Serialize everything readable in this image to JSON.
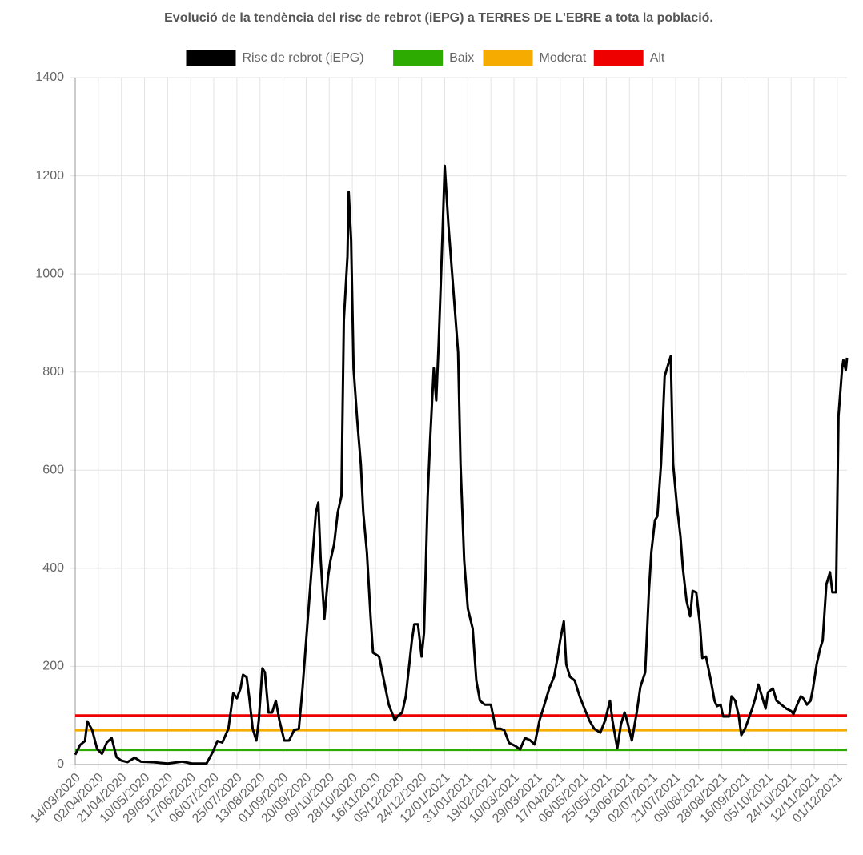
{
  "chart_data": {
    "type": "line",
    "title": "Evolució de la tendència del risc de rebrot (iEPG) a TERRES DE L'EBRE a tota la població.",
    "legend": "top",
    "grid": true,
    "xlim": [
      "14/03/2020",
      "09/12/2021"
    ],
    "xticks": [
      "14/03/2020",
      "02/04/2020",
      "21/04/2020",
      "10/05/2020",
      "29/05/2020",
      "17/06/2020",
      "06/07/2020",
      "25/07/2020",
      "13/08/2020",
      "01/09/2020",
      "20/09/2020",
      "09/10/2020",
      "28/10/2020",
      "16/11/2020",
      "05/12/2020",
      "24/12/2020",
      "12/01/2021",
      "31/01/2021",
      "19/02/2021",
      "10/03/2021",
      "29/03/2021",
      "17/04/2021",
      "06/05/2021",
      "25/05/2021",
      "13/06/2021",
      "02/07/2021",
      "21/07/2021",
      "09/08/2021",
      "28/08/2021",
      "16/09/2021",
      "05/10/2021",
      "24/10/2021",
      "12/11/2021",
      "01/12/2021"
    ],
    "ylim": [
      0,
      1400
    ],
    "yticks": [
      0,
      200,
      400,
      600,
      800,
      1000,
      1200,
      1400
    ],
    "series": [
      {
        "name": "Risc de rebrot (iEPG)",
        "color": "#000000",
        "x": [
          "14/03/2020",
          "18/03/2020",
          "22/03/2020",
          "24/03/2020",
          "28/03/2020",
          "01/04/2020",
          "05/04/2020",
          "09/04/2020",
          "13/04/2020",
          "17/04/2020",
          "21/04/2020",
          "26/04/2020",
          "02/05/2020",
          "07/05/2020",
          "16/05/2020",
          "29/05/2020",
          "10/06/2020",
          "18/06/2020",
          "30/06/2020",
          "05/07/2020",
          "09/07/2020",
          "13/07/2020",
          "18/07/2020",
          "22/07/2020",
          "25/07/2020",
          "28/07/2020",
          "30/07/2020",
          "02/08/2020",
          "04/08/2020",
          "07/08/2020",
          "10/08/2020",
          "12/08/2020",
          "15/08/2020",
          "17/08/2020",
          "20/08/2020",
          "23/08/2020",
          "26/08/2020",
          "29/08/2020",
          "02/09/2020",
          "06/09/2020",
          "10/09/2020",
          "14/09/2020",
          "17/09/2020",
          "20/09/2020",
          "22/09/2020",
          "25/09/2020",
          "28/09/2020",
          "30/09/2020",
          "02/10/2020",
          "05/10/2020",
          "08/10/2020",
          "10/10/2020",
          "13/10/2020",
          "16/10/2020",
          "19/10/2020",
          "21/10/2020",
          "24/10/2020",
          "25/10/2020",
          "27/10/2020",
          "29/10/2020",
          "01/11/2020",
          "04/11/2020",
          "06/11/2020",
          "09/11/2020",
          "12/11/2020",
          "14/11/2020",
          "19/11/2020",
          "23/11/2020",
          "27/11/2020",
          "02/12/2020",
          "04/12/2020",
          "08/12/2020",
          "11/12/2020",
          "16/12/2020",
          "18/12/2020",
          "21/12/2020",
          "24/12/2020",
          "26/12/2020",
          "29/12/2020",
          "31/12/2020",
          "03/01/2021",
          "05/01/2021",
          "07/01/2021",
          "10/01/2021",
          "12/01/2021",
          "15/01/2021",
          "18/01/2021",
          "20/01/2021",
          "23/01/2021",
          "25/01/2021",
          "28/01/2021",
          "31/01/2021",
          "04/02/2021",
          "07/02/2021",
          "10/02/2021",
          "14/02/2021",
          "19/02/2021",
          "23/02/2021",
          "27/02/2021",
          "02/03/2021",
          "06/03/2021",
          "11/03/2021",
          "15/03/2021",
          "19/03/2021",
          "23/03/2021",
          "27/03/2021",
          "31/03/2021",
          "04/04/2021",
          "08/04/2021",
          "12/04/2021",
          "15/04/2021",
          "17/04/2021",
          "20/04/2021",
          "22/04/2021",
          "25/04/2021",
          "29/04/2021",
          "03/05/2021",
          "07/05/2021",
          "11/05/2021",
          "15/05/2021",
          "20/05/2021",
          "24/05/2021",
          "28/05/2021",
          "30/05/2021",
          "03/06/2021",
          "06/06/2021",
          "09/06/2021",
          "11/06/2021",
          "15/06/2021",
          "19/06/2021",
          "22/06/2021",
          "26/06/2021",
          "29/06/2021",
          "01/07/2021",
          "04/07/2021",
          "06/07/2021",
          "09/07/2021",
          "12/07/2021",
          "14/07/2021",
          "17/07/2021",
          "19/07/2021",
          "22/07/2021",
          "25/07/2021",
          "27/07/2021",
          "30/07/2021",
          "02/08/2021",
          "04/08/2021",
          "07/08/2021",
          "10/08/2021",
          "12/08/2021",
          "15/08/2021",
          "19/08/2021",
          "22/08/2021",
          "24/08/2021",
          "27/08/2021",
          "29/08/2021",
          "03/09/2021",
          "05/09/2021",
          "08/09/2021",
          "11/09/2021",
          "13/09/2021",
          "16/09/2021",
          "18/09/2021",
          "22/09/2021",
          "25/09/2021",
          "27/09/2021",
          "30/09/2021",
          "03/10/2021",
          "05/10/2021",
          "09/10/2021",
          "12/10/2021",
          "16/10/2021",
          "20/10/2021",
          "24/10/2021",
          "26/10/2021",
          "29/10/2021",
          "01/11/2021",
          "03/11/2021",
          "06/11/2021",
          "09/11/2021",
          "11/11/2021",
          "14/11/2021",
          "17/11/2021",
          "19/11/2021",
          "22/11/2021",
          "25/11/2021",
          "27/11/2021",
          "30/11/2021",
          "02/12/2021",
          "05/12/2021",
          "06/12/2021",
          "08/12/2021",
          "09/12/2021"
        ],
        "values": [
          20,
          40,
          48,
          88,
          70,
          32,
          22,
          45,
          54,
          15,
          8,
          5,
          14,
          6,
          5,
          2,
          6,
          2,
          2,
          25,
          48,
          45,
          73,
          145,
          135,
          155,
          183,
          178,
          140,
          73,
          49,
          90,
          196,
          188,
          106,
          106,
          130,
          90,
          49,
          49,
          70,
          73,
          155,
          253,
          318,
          416,
          514,
          534,
          416,
          297,
          383,
          416,
          449,
          514,
          547,
          906,
          1036,
          1167,
          1069,
          808,
          702,
          612,
          514,
          432,
          302,
          228,
          220,
          171,
          122,
          90,
          98,
          106,
          139,
          253,
          286,
          286,
          220,
          269,
          547,
          661,
          808,
          742,
          857,
          1069,
          1220,
          1101,
          1003,
          938,
          840,
          612,
          416,
          318,
          277,
          171,
          130,
          122,
          122,
          73,
          73,
          70,
          44,
          38,
          31,
          54,
          50,
          41,
          90,
          122,
          155,
          179,
          220,
          253,
          292,
          204,
          179,
          171,
          139,
          114,
          90,
          73,
          65,
          90,
          130,
          90,
          33,
          82,
          106,
          90,
          49,
          106,
          158,
          188,
          351,
          432,
          498,
          506,
          612,
          791,
          808,
          832,
          612,
          530,
          465,
          400,
          334,
          302,
          354,
          351,
          286,
          217,
          220,
          171,
          130,
          119,
          122,
          98,
          98,
          139,
          130,
          98,
          60,
          73,
          86,
          114,
          139,
          163,
          139,
          114,
          147,
          155,
          130,
          122,
          114,
          109,
          103,
          122,
          139,
          135,
          122,
          130,
          155,
          204,
          237,
          253,
          367,
          392,
          351,
          351,
          710,
          808,
          824,
          804,
          829
        ]
      },
      {
        "name": "Baix",
        "color": "#2eab00",
        "x": [
          "14/03/2020",
          "09/12/2021"
        ],
        "values": [
          30,
          30
        ]
      },
      {
        "name": "Moderat",
        "color": "#f5ab00",
        "x": [
          "14/03/2020",
          "09/12/2021"
        ],
        "values": [
          70,
          70
        ]
      },
      {
        "name": "Alt",
        "color": "#ee0000",
        "x": [
          "14/03/2020",
          "09/12/2021"
        ],
        "values": [
          100,
          100
        ]
      }
    ]
  }
}
